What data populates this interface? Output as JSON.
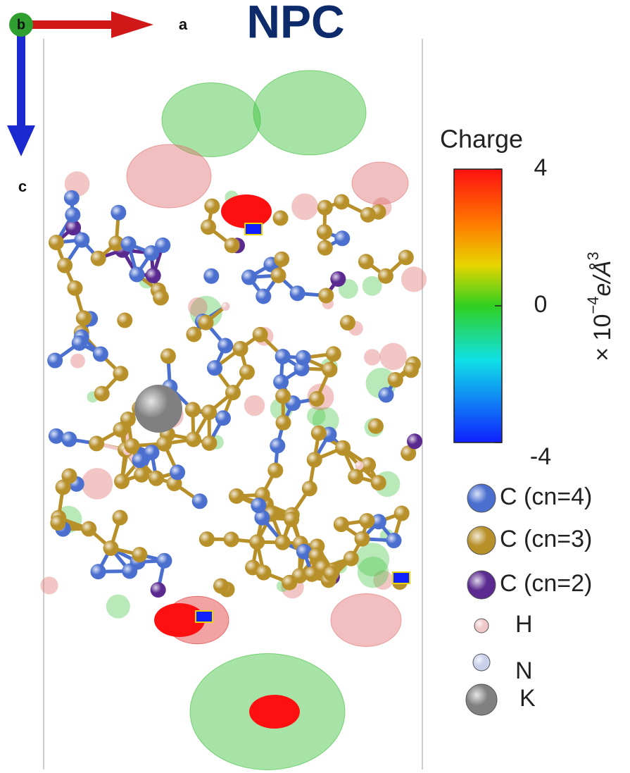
{
  "title": "NPC",
  "axes": {
    "b": "b",
    "a": "a",
    "c": "c"
  },
  "colorbar": {
    "title": "Charge",
    "ticks": [
      4,
      0,
      -4
    ],
    "unit_prefix": "× 10",
    "unit_prefix_exponent": "−4",
    "unit_symbol": "e/Å",
    "unit_exponent": "3"
  },
  "legend": [
    {
      "label": "C (cn=4)",
      "color": "#4a6fcf"
    },
    {
      "label": "C (cn=3)",
      "color": "#b8902a"
    },
    {
      "label": "C (cn=2)",
      "color": "#5b2a90"
    },
    {
      "label": "H",
      "color": "#f0c8c8"
    },
    {
      "label": "N",
      "color": "#c8d0ec"
    },
    {
      "label": "K",
      "color": "#808080"
    }
  ]
}
